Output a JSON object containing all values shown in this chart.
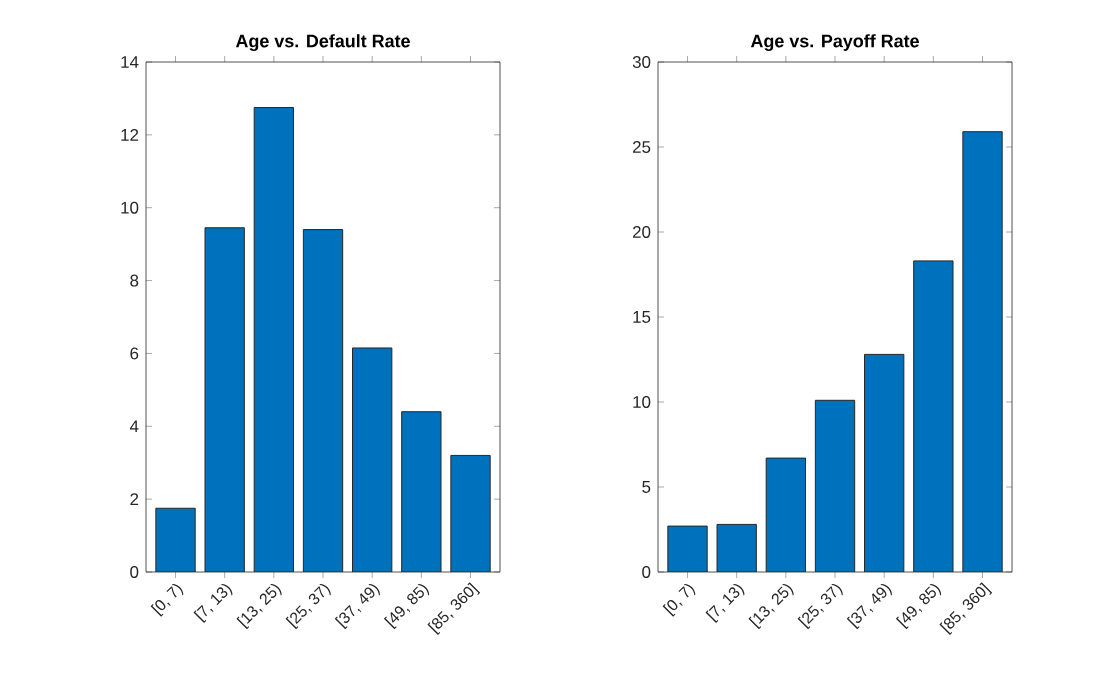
{
  "chart_data": [
    {
      "type": "bar",
      "title": "Age vs. Default Rate",
      "categories": [
        "[0, 7)",
        "[7, 13)",
        "[13, 25)",
        "[25, 37)",
        "[37, 49)",
        "[49, 85)",
        "[85, 360]"
      ],
      "values": [
        1.75,
        9.45,
        12.75,
        9.4,
        6.15,
        4.4,
        3.2
      ],
      "color": "#0072bd",
      "ylim": [
        0,
        14
      ],
      "yticks": [
        0,
        2,
        4,
        6,
        8,
        10,
        12,
        14
      ]
    },
    {
      "type": "bar",
      "title": "Age vs. Payoff Rate",
      "categories": [
        "[0, 7)",
        "[7, 13)",
        "[13, 25)",
        "[25, 37)",
        "[37, 49)",
        "[49, 85)",
        "[85, 360]"
      ],
      "values": [
        2.7,
        2.8,
        6.7,
        10.1,
        12.8,
        18.3,
        25.9
      ],
      "color": "#0072bd",
      "ylim": [
        0,
        30
      ],
      "yticks": [
        0,
        5,
        10,
        15,
        20,
        25,
        30
      ]
    }
  ]
}
